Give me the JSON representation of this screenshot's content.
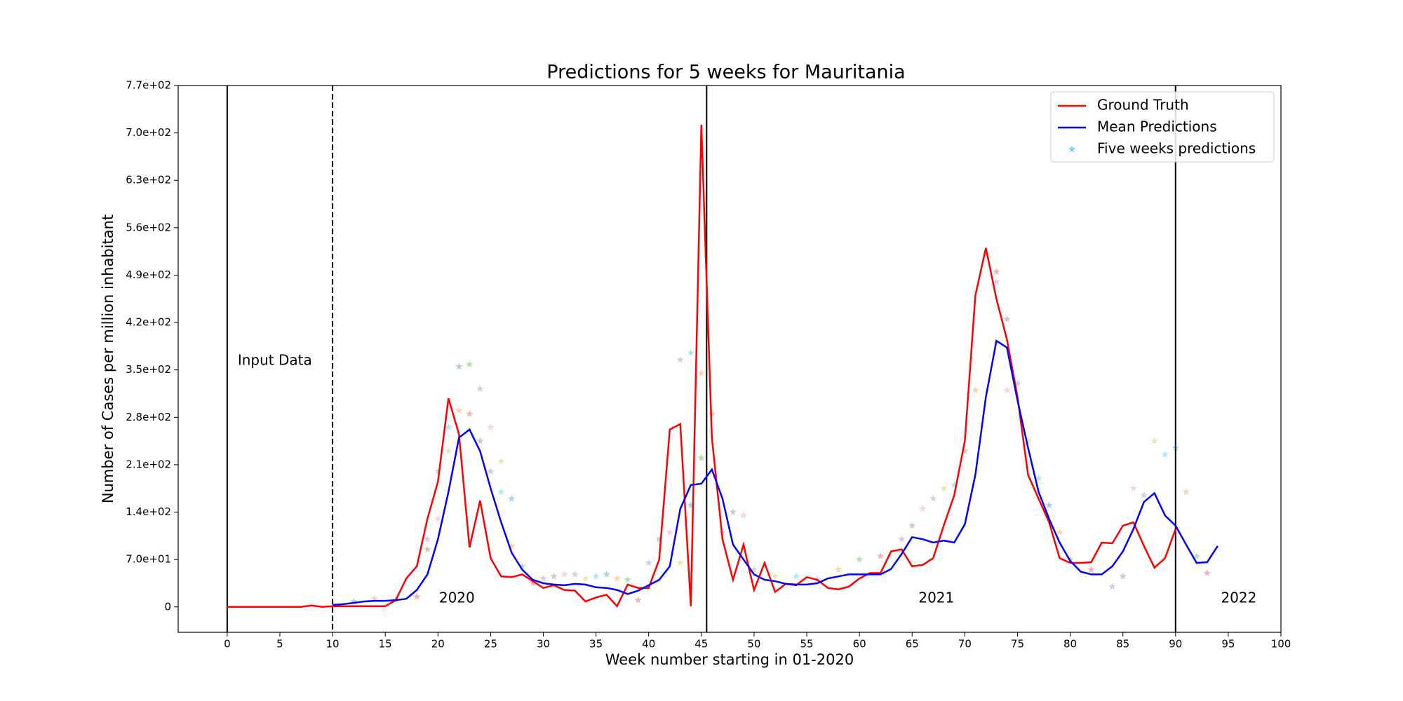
{
  "chart_data": {
    "type": "line",
    "title": "Predictions for 5 weeks for Mauritania",
    "x_label": "Week number starting in 01-2020",
    "y_label": "Number of Cases per million inhabitant",
    "xlim": [
      -4.65,
      100
    ],
    "ylim": [
      -37.5,
      770
    ],
    "xticks": [
      0,
      5,
      10,
      15,
      20,
      25,
      30,
      35,
      40,
      45,
      50,
      55,
      60,
      65,
      70,
      75,
      80,
      85,
      90,
      95,
      100
    ],
    "yticks": [
      0,
      {
        "value": 70,
        "label": "7.0e+01"
      },
      {
        "value": 140,
        "label": "1.4e+02"
      },
      {
        "value": 210,
        "label": "2.1e+02"
      },
      {
        "value": 280,
        "label": "2.8e+02"
      },
      {
        "value": 350,
        "label": "3.5e+02"
      },
      {
        "value": 420,
        "label": "4.2e+02"
      },
      {
        "value": 490,
        "label": "4.9e+02"
      },
      {
        "value": 560,
        "label": "5.6e+02"
      },
      {
        "value": 630,
        "label": "6.3e+02"
      },
      {
        "value": 700,
        "label": "7.0e+02"
      },
      {
        "value": 770,
        "label": "7.7e+02"
      }
    ],
    "legend": "upper right",
    "vlines": [
      {
        "x": 0,
        "style": "solid"
      },
      {
        "x": 10,
        "style": "dashed"
      },
      {
        "x": 45.5,
        "style": "solid"
      },
      {
        "x": 90,
        "style": "solid"
      }
    ],
    "annotations": [
      "Input Data",
      "2020",
      "2021",
      "2022"
    ],
    "series": [
      {
        "name": "Ground Truth",
        "color": "#ff0000",
        "kind": "line",
        "x": [
          0,
          1,
          2,
          3,
          4,
          5,
          6,
          7,
          8,
          9,
          10,
          11,
          12,
          13,
          14,
          15,
          16,
          17,
          18,
          19,
          20,
          21,
          22,
          23,
          24,
          25,
          26,
          27,
          28,
          29,
          30,
          31,
          32,
          33,
          34,
          35,
          36,
          37,
          38,
          39,
          40,
          41,
          42,
          43,
          44,
          45,
          46,
          47,
          48,
          49,
          50,
          51,
          52,
          53,
          54,
          55,
          56,
          57,
          58,
          59,
          60,
          61,
          62,
          63,
          64,
          65,
          66,
          67,
          68,
          69,
          70,
          71,
          72,
          73,
          74,
          75,
          76,
          77,
          78,
          79,
          80,
          81,
          82,
          83,
          84,
          85,
          86,
          87,
          88,
          89,
          90
        ],
        "values": [
          0,
          0,
          0,
          0,
          0,
          0,
          0,
          0,
          2,
          0,
          1,
          1,
          1,
          1,
          1,
          1,
          10,
          42,
          60,
          130,
          185,
          308,
          255,
          88,
          157,
          72,
          45,
          44,
          48,
          38,
          28,
          32,
          25,
          24,
          8,
          14,
          18,
          1,
          33,
          28,
          28,
          70,
          262,
          270,
          1,
          712,
          250,
          100,
          40,
          92,
          25,
          65,
          22,
          34,
          32,
          44,
          40,
          28,
          26,
          30,
          42,
          50,
          50,
          82,
          85,
          60,
          62,
          72,
          120,
          165,
          245,
          460,
          530,
          455,
          395,
          310,
          195,
          160,
          125,
          72,
          65,
          65,
          66,
          95,
          94,
          120,
          125,
          90,
          58,
          72,
          115
        ]
      },
      {
        "name": "Mean Predictions",
        "color": "#0000ff",
        "kind": "line",
        "x": [
          10,
          11,
          12,
          13,
          14,
          15,
          16,
          17,
          18,
          19,
          20,
          21,
          22,
          23,
          24,
          25,
          26,
          27,
          28,
          29,
          30,
          31,
          32,
          33,
          34,
          35,
          36,
          37,
          38,
          39,
          40,
          41,
          42,
          43,
          44,
          45,
          46,
          47,
          48,
          49,
          50,
          51,
          52,
          53,
          54,
          55,
          56,
          57,
          58,
          59,
          60,
          61,
          62,
          63,
          64,
          65,
          66,
          67,
          68,
          69,
          70,
          71,
          72,
          73,
          74,
          75,
          76,
          77,
          78,
          79,
          80,
          81,
          82,
          83,
          84,
          85,
          86,
          87,
          88,
          89,
          90,
          91,
          92,
          93,
          94
        ],
        "values": [
          3,
          4,
          6,
          8,
          9,
          9,
          10,
          12,
          25,
          48,
          100,
          170,
          250,
          262,
          230,
          175,
          125,
          80,
          55,
          40,
          35,
          33,
          32,
          34,
          33,
          29,
          28,
          25,
          19,
          24,
          32,
          40,
          60,
          145,
          180,
          182,
          203,
          160,
          92,
          70,
          48,
          40,
          38,
          34,
          33,
          33,
          35,
          42,
          45,
          48,
          48,
          48,
          48,
          56,
          78,
          103,
          100,
          95,
          98,
          95,
          122,
          195,
          310,
          393,
          383,
          305,
          235,
          170,
          130,
          95,
          68,
          52,
          48,
          48,
          60,
          82,
          115,
          155,
          168,
          135,
          120,
          92,
          65,
          66,
          90
        ]
      },
      {
        "name": "Five weeks predictions",
        "color": "#87ceeb",
        "kind": "scatter",
        "colors": [
          "#1f77b4",
          "#ff7f0e",
          "#2ca02c",
          "#d62728",
          "#9467bd",
          "#8c564b",
          "#e377c2",
          "#7f7f7f",
          "#bcbd22",
          "#17becf"
        ],
        "x": [
          12,
          14,
          16,
          18,
          19,
          19,
          20,
          20,
          21,
          21,
          22,
          22,
          23,
          23,
          24,
          24,
          25,
          25,
          26,
          26,
          27,
          27,
          28,
          29,
          30,
          31,
          32,
          33,
          34,
          35,
          36,
          37,
          38,
          39,
          40,
          41,
          42,
          43,
          43,
          44,
          44,
          45,
          45,
          46,
          47,
          48,
          49,
          50,
          52,
          54,
          56,
          58,
          60,
          62,
          64,
          65,
          66,
          67,
          68,
          69,
          70,
          71,
          72,
          73,
          73,
          74,
          74,
          75,
          76,
          77,
          78,
          79,
          80,
          82,
          84,
          85,
          86,
          87,
          88,
          89,
          90,
          91,
          92,
          93
        ],
        "values": [
          8,
          12,
          10,
          15,
          100,
          85,
          130,
          200,
          230,
          265,
          355,
          290,
          358,
          285,
          322,
          245,
          265,
          200,
          215,
          170,
          160,
          90,
          60,
          35,
          42,
          45,
          48,
          48,
          42,
          45,
          48,
          42,
          40,
          10,
          65,
          100,
          110,
          365,
          65,
          375,
          150,
          345,
          220,
          285,
          110,
          140,
          135,
          55,
          45,
          45,
          40,
          55,
          70,
          75,
          100,
          120,
          145,
          160,
          175,
          180,
          230,
          320,
          520,
          495,
          480,
          425,
          320,
          330,
          245,
          190,
          150,
          110,
          70,
          55,
          30,
          45,
          175,
          165,
          245,
          225,
          235,
          170,
          75,
          50
        ]
      }
    ]
  }
}
